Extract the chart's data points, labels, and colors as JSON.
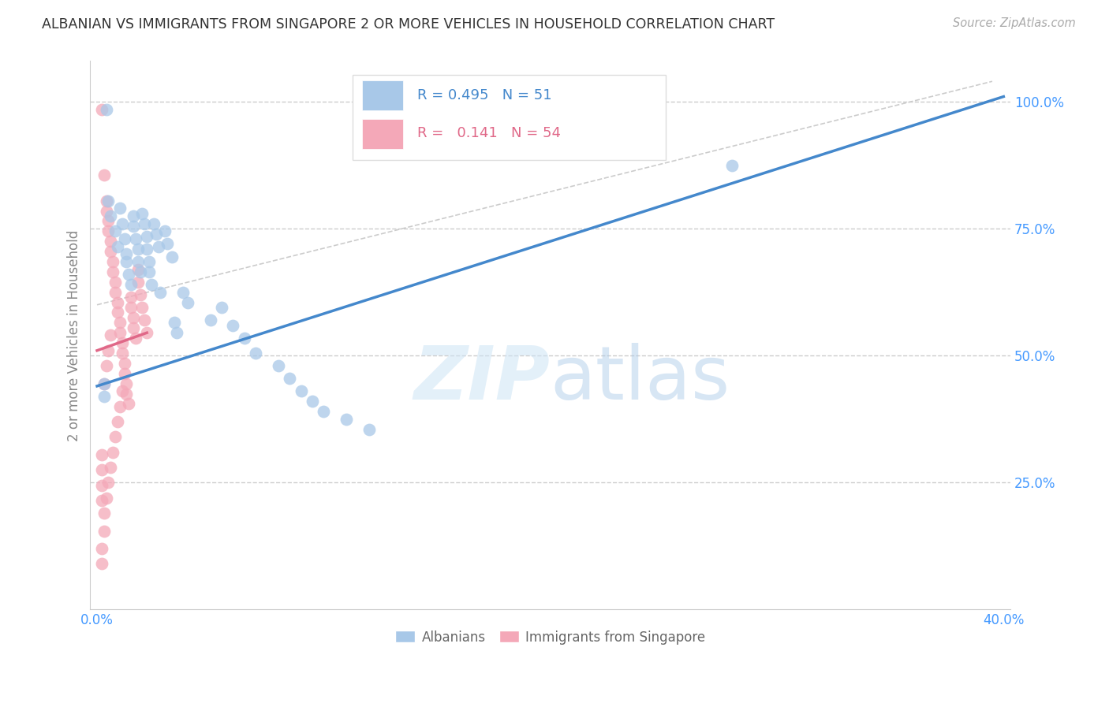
{
  "title": "ALBANIAN VS IMMIGRANTS FROM SINGAPORE 2 OR MORE VEHICLES IN HOUSEHOLD CORRELATION CHART",
  "source": "Source: ZipAtlas.com",
  "ylabel": "2 or more Vehicles in Household",
  "yticks_labels": [
    "100.0%",
    "75.0%",
    "50.0%",
    "25.0%"
  ],
  "ytick_vals": [
    1.0,
    0.75,
    0.5,
    0.25
  ],
  "xlim": [
    0.0,
    0.4
  ],
  "ylim": [
    0.0,
    1.05
  ],
  "blue_color": "#a8c8e8",
  "pink_color": "#f4a8b8",
  "blue_line_color": "#4488cc",
  "pink_line_color": "#e06888",
  "blue_line": [
    [
      0.0,
      0.44
    ],
    [
      0.4,
      1.01
    ]
  ],
  "pink_line": [
    [
      0.0,
      0.51
    ],
    [
      0.022,
      0.545
    ]
  ],
  "diag_line": [
    [
      0.0,
      0.6
    ],
    [
      0.395,
      1.04
    ]
  ],
  "blue_scatter": [
    [
      0.004,
      0.985
    ],
    [
      0.005,
      0.805
    ],
    [
      0.006,
      0.775
    ],
    [
      0.008,
      0.745
    ],
    [
      0.009,
      0.715
    ],
    [
      0.01,
      0.79
    ],
    [
      0.011,
      0.76
    ],
    [
      0.012,
      0.73
    ],
    [
      0.013,
      0.7
    ],
    [
      0.013,
      0.685
    ],
    [
      0.014,
      0.66
    ],
    [
      0.015,
      0.64
    ],
    [
      0.016,
      0.775
    ],
    [
      0.016,
      0.755
    ],
    [
      0.017,
      0.73
    ],
    [
      0.018,
      0.71
    ],
    [
      0.018,
      0.685
    ],
    [
      0.019,
      0.665
    ],
    [
      0.02,
      0.78
    ],
    [
      0.021,
      0.76
    ],
    [
      0.022,
      0.735
    ],
    [
      0.022,
      0.71
    ],
    [
      0.023,
      0.685
    ],
    [
      0.023,
      0.665
    ],
    [
      0.024,
      0.64
    ],
    [
      0.025,
      0.76
    ],
    [
      0.026,
      0.74
    ],
    [
      0.027,
      0.715
    ],
    [
      0.028,
      0.625
    ],
    [
      0.03,
      0.745
    ],
    [
      0.031,
      0.72
    ],
    [
      0.033,
      0.695
    ],
    [
      0.034,
      0.565
    ],
    [
      0.035,
      0.545
    ],
    [
      0.038,
      0.625
    ],
    [
      0.04,
      0.605
    ],
    [
      0.05,
      0.57
    ],
    [
      0.055,
      0.595
    ],
    [
      0.06,
      0.56
    ],
    [
      0.065,
      0.535
    ],
    [
      0.07,
      0.505
    ],
    [
      0.08,
      0.48
    ],
    [
      0.085,
      0.455
    ],
    [
      0.09,
      0.43
    ],
    [
      0.095,
      0.41
    ],
    [
      0.1,
      0.39
    ],
    [
      0.11,
      0.375
    ],
    [
      0.12,
      0.355
    ],
    [
      0.28,
      0.875
    ],
    [
      0.003,
      0.445
    ],
    [
      0.003,
      0.42
    ]
  ],
  "pink_scatter": [
    [
      0.002,
      0.985
    ],
    [
      0.003,
      0.855
    ],
    [
      0.004,
      0.805
    ],
    [
      0.004,
      0.785
    ],
    [
      0.005,
      0.765
    ],
    [
      0.005,
      0.745
    ],
    [
      0.006,
      0.725
    ],
    [
      0.006,
      0.705
    ],
    [
      0.007,
      0.685
    ],
    [
      0.007,
      0.665
    ],
    [
      0.008,
      0.645
    ],
    [
      0.008,
      0.625
    ],
    [
      0.009,
      0.605
    ],
    [
      0.009,
      0.585
    ],
    [
      0.01,
      0.565
    ],
    [
      0.01,
      0.545
    ],
    [
      0.011,
      0.525
    ],
    [
      0.011,
      0.505
    ],
    [
      0.012,
      0.485
    ],
    [
      0.012,
      0.465
    ],
    [
      0.013,
      0.445
    ],
    [
      0.013,
      0.425
    ],
    [
      0.014,
      0.405
    ],
    [
      0.015,
      0.615
    ],
    [
      0.015,
      0.595
    ],
    [
      0.016,
      0.575
    ],
    [
      0.016,
      0.555
    ],
    [
      0.017,
      0.535
    ],
    [
      0.018,
      0.67
    ],
    [
      0.018,
      0.645
    ],
    [
      0.019,
      0.62
    ],
    [
      0.02,
      0.595
    ],
    [
      0.021,
      0.57
    ],
    [
      0.022,
      0.545
    ],
    [
      0.003,
      0.19
    ],
    [
      0.003,
      0.155
    ],
    [
      0.004,
      0.22
    ],
    [
      0.005,
      0.25
    ],
    [
      0.006,
      0.28
    ],
    [
      0.002,
      0.12
    ],
    [
      0.002,
      0.09
    ],
    [
      0.007,
      0.31
    ],
    [
      0.008,
      0.34
    ],
    [
      0.009,
      0.37
    ],
    [
      0.01,
      0.4
    ],
    [
      0.011,
      0.43
    ],
    [
      0.003,
      0.445
    ],
    [
      0.004,
      0.48
    ],
    [
      0.005,
      0.51
    ],
    [
      0.006,
      0.54
    ],
    [
      0.002,
      0.305
    ],
    [
      0.002,
      0.275
    ],
    [
      0.002,
      0.245
    ],
    [
      0.002,
      0.215
    ]
  ]
}
